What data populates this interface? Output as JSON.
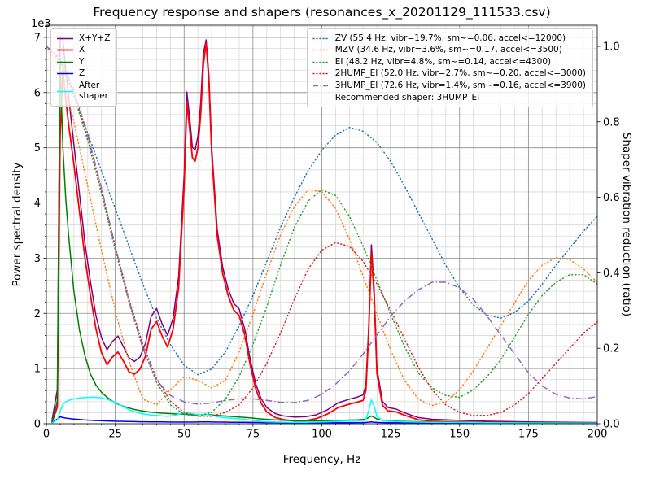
{
  "chart_data": {
    "type": "line",
    "title": "Frequency response and shapers (resonances_x_20201129_111533.csv)",
    "xlabel": "Frequency, Hz",
    "ylabel": "Power spectral density",
    "ylabel_right": "Shaper vibration reduction (ratio)",
    "y_offset_text": "1e3",
    "xlim": [
      0,
      200
    ],
    "ylim_left": [
      0,
      7220
    ],
    "ylim_right": [
      0,
      1.056
    ],
    "x_major_ticks": [
      0,
      25,
      50,
      75,
      100,
      125,
      150,
      175,
      200
    ],
    "x_minor_step": 5,
    "y_left_minor_step": 200,
    "y_left_ticks": {
      "values": [
        0,
        1000,
        2000,
        3000,
        4000,
        5000,
        6000,
        7000
      ],
      "labels": [
        "0",
        "1",
        "2",
        "3",
        "4",
        "5",
        "6",
        "7"
      ]
    },
    "y_right_ticks": {
      "values": [
        0,
        0.2,
        0.4,
        0.6,
        0.8,
        1.0
      ],
      "labels": [
        "0.0",
        "0.2",
        "0.4",
        "0.6",
        "0.8",
        "1.0"
      ]
    },
    "grid": {
      "major_color": "#8a8a8a",
      "minor_color": "#d9d9d9"
    },
    "psd_x": [
      2,
      4,
      5,
      6,
      7,
      8,
      10,
      12,
      14,
      16,
      18,
      20,
      22,
      24,
      26,
      28,
      30,
      32,
      34,
      36,
      38,
      40,
      42,
      44,
      46,
      48,
      50,
      51,
      52,
      53,
      54,
      55,
      56,
      57,
      58,
      59,
      60,
      62,
      64,
      66,
      68,
      70,
      72,
      74,
      76,
      78,
      80,
      83,
      86,
      90,
      94,
      98,
      102,
      106,
      110,
      113,
      115,
      116,
      117,
      118,
      119,
      120,
      122,
      124,
      127,
      130,
      135,
      140,
      150,
      160,
      175,
      190,
      200
    ],
    "psd_series": [
      {
        "name": "X+Y+Z",
        "label": "X+Y+Z",
        "color": "#800080",
        "style": "solid",
        "width": 1.5,
        "y": [
          50,
          620,
          7000,
          6950,
          6420,
          5960,
          5060,
          4170,
          3270,
          2570,
          1960,
          1560,
          1340,
          1490,
          1590,
          1390,
          1190,
          1130,
          1210,
          1460,
          1940,
          2090,
          1810,
          1600,
          1910,
          2660,
          4510,
          6010,
          5560,
          5010,
          4960,
          5210,
          5810,
          6710,
          6955,
          6310,
          5020,
          3520,
          2840,
          2440,
          2180,
          2080,
          1720,
          1160,
          720,
          450,
          295,
          185,
          142,
          122,
          126,
          162,
          252,
          382,
          445,
          485,
          525,
          715,
          1730,
          3240,
          2440,
          1000,
          405,
          295,
          265,
          198,
          112,
          81,
          61,
          46,
          33,
          26,
          22
        ]
      },
      {
        "name": "X",
        "label": "X",
        "color": "#ff0000",
        "style": "solid",
        "width": 1.8,
        "y": [
          20,
          300,
          5200,
          6420,
          5900,
          5450,
          4700,
          3850,
          3000,
          2320,
          1720,
          1290,
          1070,
          1210,
          1300,
          1130,
          940,
          900,
          990,
          1230,
          1710,
          1850,
          1590,
          1390,
          1710,
          2460,
          4300,
          5800,
          5350,
          4820,
          4760,
          5000,
          5600,
          6500,
          6900,
          6200,
          4900,
          3400,
          2720,
          2320,
          2060,
          1960,
          1610,
          1060,
          630,
          370,
          215,
          115,
          75,
          52,
          56,
          92,
          175,
          295,
          355,
          395,
          425,
          610,
          1620,
          3080,
          2320,
          910,
          335,
          235,
          215,
          155,
          72,
          46,
          31,
          23,
          16,
          12,
          10
        ]
      },
      {
        "name": "Y",
        "label": "Y",
        "color": "#008000",
        "style": "solid",
        "width": 1.5,
        "y": [
          18,
          420,
          6600,
          5000,
          4100,
          3450,
          2400,
          1700,
          1230,
          900,
          700,
          570,
          480,
          410,
          355,
          315,
          285,
          258,
          238,
          222,
          210,
          200,
          192,
          185,
          180,
          176,
          172,
          170,
          168,
          167,
          166,
          165,
          166,
          168,
          170,
          166,
          161,
          152,
          143,
          135,
          128,
          122,
          115,
          106,
          96,
          87,
          79,
          70,
          63,
          56,
          52,
          52,
          56,
          61,
          66,
          71,
          76,
          86,
          112,
          142,
          116,
          86,
          66,
          56,
          49,
          43,
          36,
          31,
          26,
          21,
          16,
          13,
          11
        ]
      },
      {
        "name": "Z",
        "label": "Z",
        "color": "#0000ff",
        "style": "solid",
        "width": 1.5,
        "y": [
          15,
          85,
          125,
          112,
          103,
          96,
          86,
          76,
          68,
          62,
          58,
          54,
          50,
          47,
          44,
          42,
          40,
          38,
          36,
          35,
          34,
          33,
          32,
          31,
          30,
          30,
          30,
          30,
          30,
          30,
          31,
          31,
          32,
          32,
          33,
          32,
          31,
          30,
          29,
          28,
          27,
          26,
          25,
          24,
          23,
          22,
          21,
          20,
          19,
          18,
          17,
          17,
          17,
          18,
          19,
          20,
          21,
          23,
          28,
          34,
          28,
          23,
          20,
          19,
          18,
          17,
          15,
          14,
          12,
          11,
          10,
          9,
          9
        ]
      },
      {
        "name": "After-shaper",
        "label": "After\nshaper",
        "color": "#00ffff",
        "style": "solid",
        "width": 1.5,
        "y": [
          10,
          70,
          230,
          350,
          395,
          420,
          450,
          465,
          476,
          481,
          479,
          469,
          442,
          407,
          367,
          307,
          252,
          217,
          192,
          172,
          159,
          151,
          141,
          136,
          146,
          171,
          196,
          201,
          191,
          181,
          173,
          169,
          167,
          169,
          171,
          161,
          149,
          131,
          116,
          104,
          96,
          89,
          79,
          66,
          53,
          43,
          36,
          31,
          28,
          26,
          26,
          29,
          35,
          43,
          49,
          53,
          57,
          77,
          235,
          430,
          315,
          132,
          56,
          46,
          41,
          36,
          29,
          26,
          23,
          19,
          15,
          12,
          11
        ]
      }
    ],
    "shaper_x": [
      0,
      5,
      10,
      15,
      20,
      25,
      30,
      35,
      40,
      45,
      50,
      55,
      60,
      65,
      70,
      75,
      80,
      85,
      90,
      95,
      100,
      105,
      110,
      115,
      120,
      125,
      130,
      135,
      140,
      145,
      150,
      155,
      160,
      165,
      170,
      175,
      180,
      185,
      190,
      195,
      200
    ],
    "shaper_series": [
      {
        "name": "ZV",
        "label": "ZV (55.4 Hz, vibr=19.7%, sm~=0.06, accel<=12000)",
        "color": "#1f77b4",
        "style": "dotted",
        "width": 1.5,
        "y": [
          1.0,
          0.96,
          0.87,
          0.77,
          0.67,
          0.57,
          0.47,
          0.37,
          0.28,
          0.21,
          0.155,
          0.13,
          0.145,
          0.19,
          0.26,
          0.34,
          0.43,
          0.52,
          0.6,
          0.67,
          0.725,
          0.765,
          0.785,
          0.775,
          0.745,
          0.695,
          0.63,
          0.56,
          0.49,
          0.42,
          0.36,
          0.315,
          0.288,
          0.28,
          0.295,
          0.325,
          0.37,
          0.42,
          0.465,
          0.51,
          0.55
        ]
      },
      {
        "name": "MZV",
        "label": "MZV (34.6 Hz, vibr=3.6%, sm~=0.17, accel<=3500)",
        "color": "#ff7f0e",
        "style": "dotted",
        "width": 1.5,
        "y": [
          1.0,
          0.94,
          0.8,
          0.63,
          0.46,
          0.3,
          0.165,
          0.065,
          0.05,
          0.09,
          0.125,
          0.115,
          0.095,
          0.115,
          0.19,
          0.29,
          0.4,
          0.5,
          0.575,
          0.62,
          0.615,
          0.57,
          0.49,
          0.39,
          0.29,
          0.195,
          0.115,
          0.065,
          0.048,
          0.058,
          0.09,
          0.14,
          0.2,
          0.26,
          0.32,
          0.38,
          0.42,
          0.44,
          0.435,
          0.41,
          0.375
        ]
      },
      {
        "name": "EI",
        "label": "EI (48.2 Hz, vibr=4.8%, sm~=0.14, accel<=4300)",
        "color": "#2ca02c",
        "style": "dotted",
        "width": 1.5,
        "y": [
          1.0,
          0.96,
          0.87,
          0.75,
          0.61,
          0.46,
          0.32,
          0.2,
          0.11,
          0.05,
          0.025,
          0.02,
          0.03,
          0.065,
          0.125,
          0.21,
          0.31,
          0.42,
          0.52,
          0.59,
          0.62,
          0.605,
          0.55,
          0.47,
          0.38,
          0.29,
          0.205,
          0.135,
          0.095,
          0.075,
          0.07,
          0.09,
          0.125,
          0.17,
          0.23,
          0.29,
          0.34,
          0.375,
          0.395,
          0.395,
          0.37
        ]
      },
      {
        "name": "2HUMP_EI",
        "label": "2HUMP_EI (52.0 Hz, vibr=2.7%, sm~=0.20, accel<=3000)",
        "color": "#d62728",
        "style": "dotted",
        "width": 1.5,
        "y": [
          1.0,
          0.965,
          0.88,
          0.76,
          0.62,
          0.47,
          0.33,
          0.21,
          0.12,
          0.06,
          0.03,
          0.02,
          0.02,
          0.03,
          0.05,
          0.095,
          0.16,
          0.24,
          0.33,
          0.41,
          0.46,
          0.48,
          0.47,
          0.43,
          0.37,
          0.3,
          0.225,
          0.15,
          0.09,
          0.05,
          0.03,
          0.022,
          0.022,
          0.03,
          0.05,
          0.08,
          0.12,
          0.16,
          0.2,
          0.24,
          0.27
        ]
      },
      {
        "name": "3HUMP_EI",
        "label": "3HUMP_EI (72.6 Hz, vibr=1.4%, sm~=0.16, accel<=3900)",
        "color": "#9467bd",
        "style": "dashdot",
        "width": 1.5,
        "y": [
          1.0,
          0.97,
          0.885,
          0.765,
          0.625,
          0.47,
          0.325,
          0.2,
          0.115,
          0.075,
          0.058,
          0.052,
          0.055,
          0.062,
          0.066,
          0.066,
          0.062,
          0.057,
          0.056,
          0.062,
          0.078,
          0.105,
          0.14,
          0.185,
          0.235,
          0.285,
          0.325,
          0.355,
          0.375,
          0.375,
          0.36,
          0.33,
          0.285,
          0.235,
          0.185,
          0.135,
          0.1,
          0.078,
          0.068,
          0.066,
          0.072
        ]
      }
    ],
    "legend_note": "Recommended shaper: 3HUMP_EI",
    "recommended_shaper": "3HUMP_EI",
    "legend_position_left": "upper left",
    "legend_position_right": "upper right",
    "grid_on": true
  }
}
